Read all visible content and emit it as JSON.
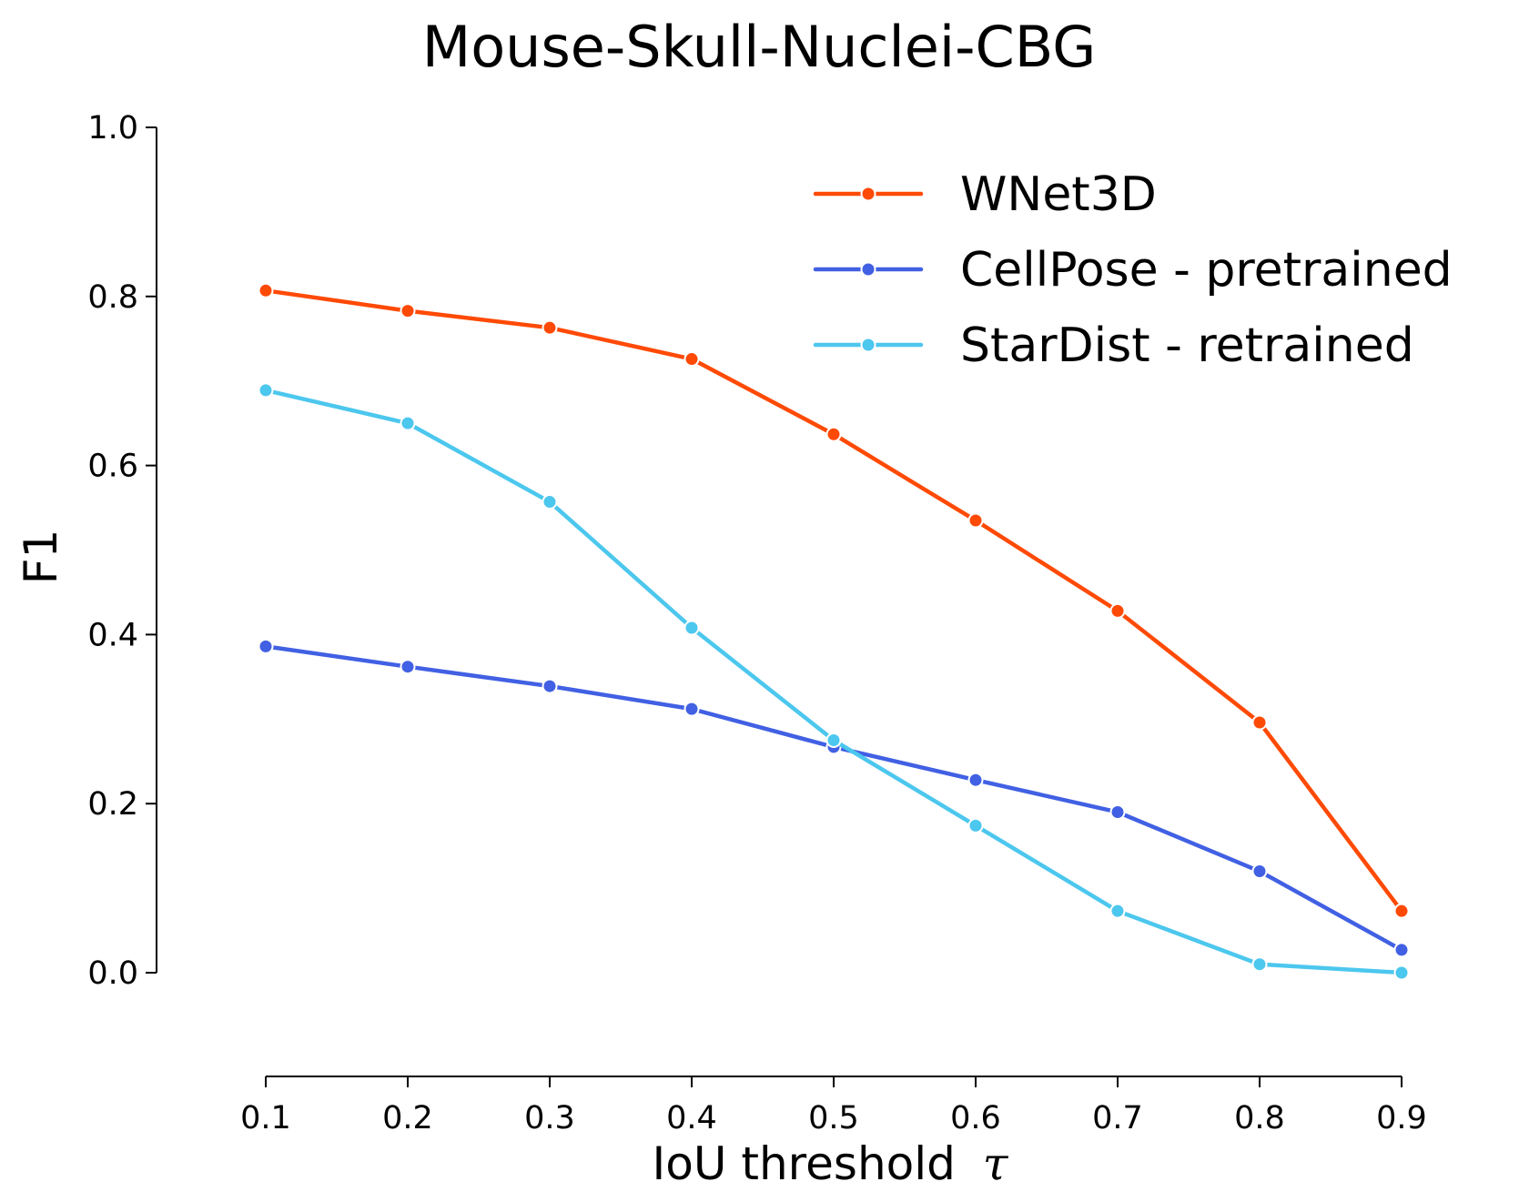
{
  "chart_data": {
    "type": "line",
    "title": "Mouse-Skull-Nuclei-CBG",
    "xlabel": "IoU threshold",
    "xlabel_symbol": "τ",
    "ylabel": "F1",
    "x": [
      0.1,
      0.2,
      0.3,
      0.4,
      0.5,
      0.6,
      0.7,
      0.8,
      0.9
    ],
    "x_tick_labels": [
      "0.1",
      "0.2",
      "0.3",
      "0.4",
      "0.5",
      "0.6",
      "0.7",
      "0.8",
      "0.9"
    ],
    "y_tick_values": [
      0.0,
      0.2,
      0.4,
      0.6,
      0.8,
      1.0
    ],
    "y_tick_labels": [
      "0.0",
      "0.2",
      "0.4",
      "0.6",
      "0.8",
      "1.0"
    ],
    "xlim": [
      0.1,
      0.9
    ],
    "ylim": [
      0.0,
      1.0
    ],
    "grid": false,
    "legend_position": "top-right",
    "series": [
      {
        "name": "WNet3D",
        "color": "#FF4A06",
        "values": [
          0.807,
          0.783,
          0.763,
          0.726,
          0.637,
          0.535,
          0.428,
          0.296,
          0.073
        ]
      },
      {
        "name": "CellPose - pretrained",
        "color": "#4160E3",
        "values": [
          0.386,
          0.362,
          0.339,
          0.312,
          0.267,
          0.228,
          0.19,
          0.12,
          0.027
        ]
      },
      {
        "name": "StarDist - retrained",
        "color": "#4CC7EE",
        "values": [
          0.689,
          0.65,
          0.557,
          0.408,
          0.275,
          0.174,
          0.073,
          0.01,
          0.0
        ]
      }
    ]
  }
}
